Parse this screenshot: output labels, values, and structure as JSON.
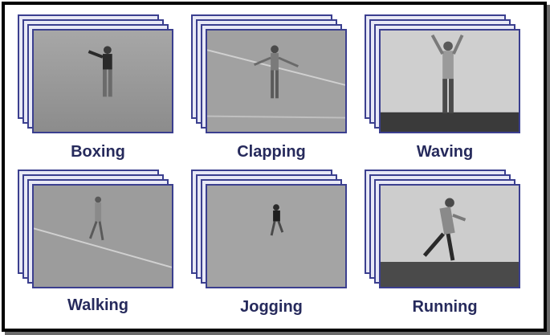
{
  "actions": [
    {
      "label": "Boxing"
    },
    {
      "label": "Clapping"
    },
    {
      "label": "Waving"
    },
    {
      "label": "Walking"
    },
    {
      "label": "Jogging"
    },
    {
      "label": "Running"
    }
  ],
  "colors": {
    "frame_border": "#000000",
    "stack_border": "#3b3f8f",
    "label_text": "#262a5c",
    "outdoor_ground": "#8f8f8f",
    "indoor_wall": "#c9c9c9"
  }
}
